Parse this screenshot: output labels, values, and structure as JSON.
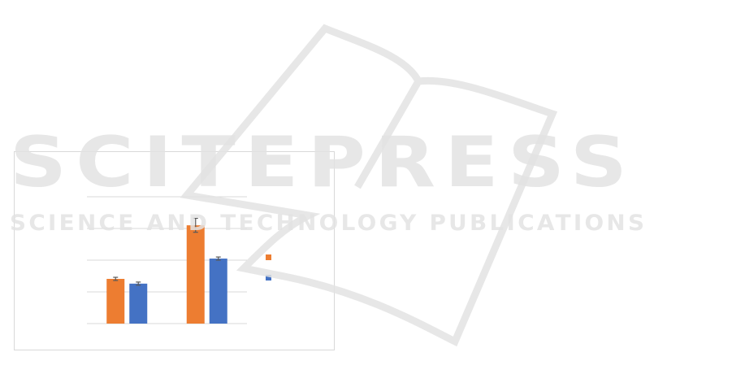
{
  "watermark": {
    "main": "SCITEPRESS",
    "sub": "SCIENCE AND TECHNOLOGY PUBLICATIONS"
  },
  "chart_data": {
    "type": "bar",
    "title": "",
    "xlabel": "",
    "ylabel": "",
    "categories": [
      "",
      ""
    ],
    "ylim": [
      0,
      4
    ],
    "gridlines": true,
    "legend_position": "right",
    "series": [
      {
        "color": "#ED7D31",
        "values": [
          1.41,
          3.1
        ],
        "errors": [
          0.05,
          0.22
        ]
      },
      {
        "color": "#4472C4",
        "values": [
          1.26,
          2.05
        ],
        "errors": [
          0.05,
          0.05
        ]
      }
    ]
  }
}
